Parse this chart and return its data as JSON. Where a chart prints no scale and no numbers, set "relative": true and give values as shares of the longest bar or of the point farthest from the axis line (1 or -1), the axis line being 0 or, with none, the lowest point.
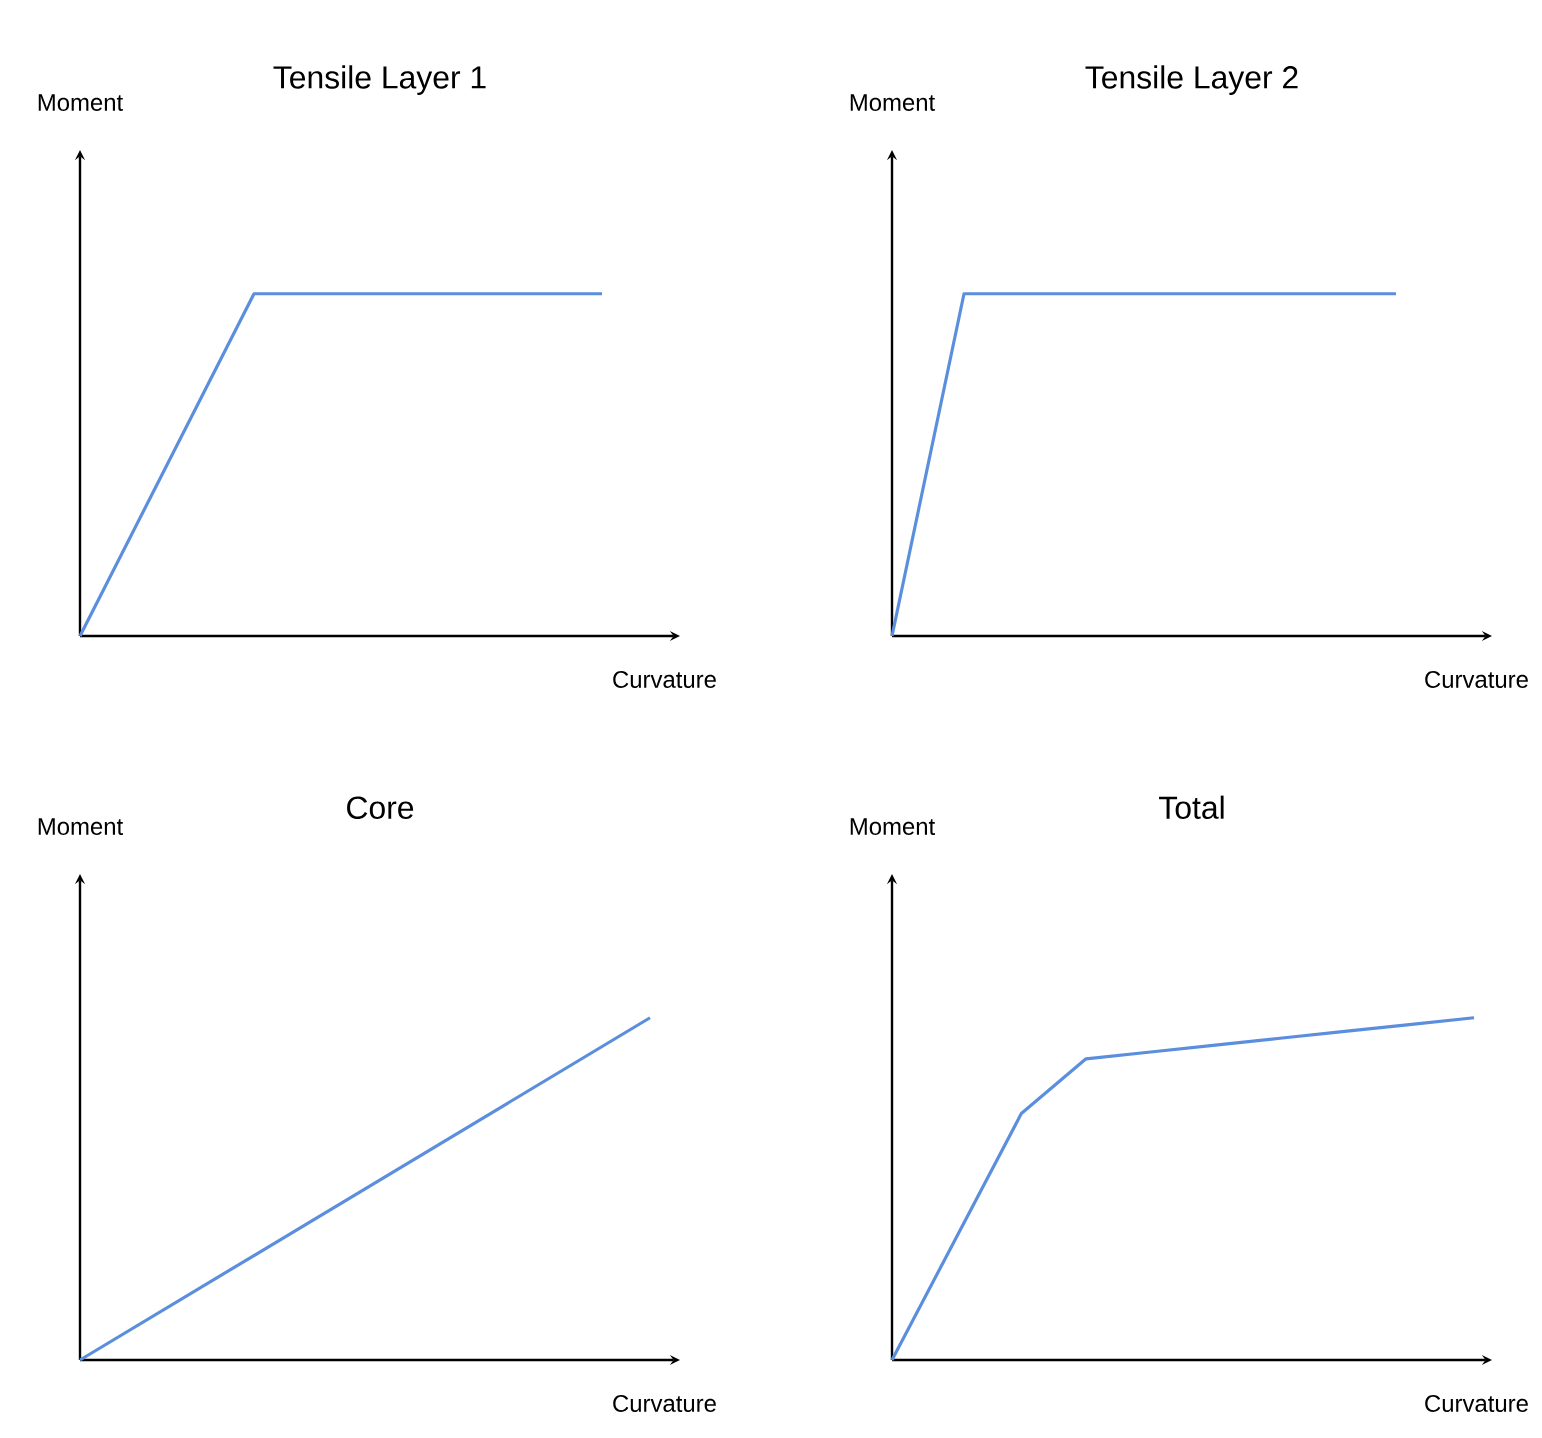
{
  "chart_data": [
    {
      "type": "line",
      "title": "Tensile Layer 1",
      "xlabel": "Curvature",
      "ylabel": "Moment",
      "relative": true,
      "tick_labels": false,
      "color": "#5b8fde",
      "categories": [
        null,
        null,
        null,
        null
      ],
      "values": [
        0,
        1,
        1,
        1
      ]
    },
    {
      "type": "line",
      "title": "Tensile Layer 2",
      "xlabel": "Curvature",
      "ylabel": "Moment",
      "relative": true,
      "tick_labels": false,
      "color": "#5b8fde",
      "categories": [
        null,
        null,
        null,
        null,
        null,
        null,
        null,
        null
      ],
      "values": [
        0,
        1,
        1,
        1,
        1,
        1,
        1,
        1
      ]
    },
    {
      "type": "line",
      "title": "Core",
      "xlabel": "Curvature",
      "ylabel": "Moment",
      "relative": true,
      "tick_labels": false,
      "color": "#5b8fde",
      "categories": [
        null,
        null
      ],
      "values": [
        0,
        1
      ]
    },
    {
      "type": "line",
      "title": "Total",
      "xlabel": "Curvature",
      "ylabel": "Moment",
      "relative": true,
      "tick_labels": false,
      "color": "#5b8fde",
      "categories": [
        null,
        null,
        null,
        null,
        null,
        null,
        null,
        null,
        null,
        null
      ],
      "values": [
        0,
        0.36,
        0.72,
        0.88,
        0.9,
        0.92,
        0.94,
        0.96,
        0.98,
        1
      ]
    }
  ]
}
